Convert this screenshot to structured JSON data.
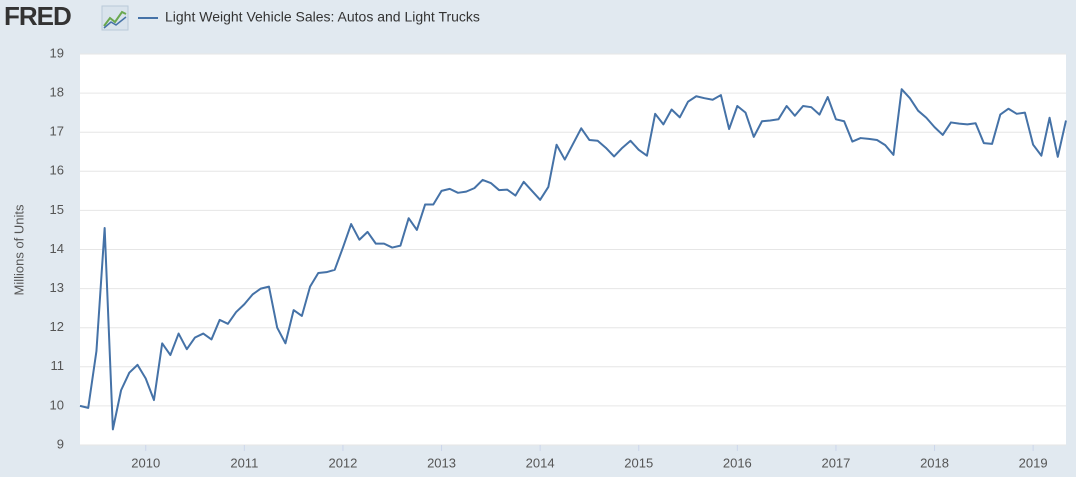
{
  "brand": "FRED",
  "chart_data": {
    "type": "line",
    "y_label": "Millions of Units",
    "xlim": [
      "2009-05",
      "2019-05"
    ],
    "xticks": [
      "2010",
      "2011",
      "2012",
      "2013",
      "2014",
      "2015",
      "2016",
      "2017",
      "2018",
      "2019"
    ],
    "ylim": [
      9,
      19
    ],
    "yticks": [
      9,
      10,
      11,
      12,
      13,
      14,
      15,
      16,
      17,
      18,
      19
    ],
    "grid": true,
    "x": [
      "2009-05",
      "2009-06",
      "2009-07",
      "2009-08",
      "2009-09",
      "2009-10",
      "2009-11",
      "2009-12",
      "2010-01",
      "2010-02",
      "2010-03",
      "2010-04",
      "2010-05",
      "2010-06",
      "2010-07",
      "2010-08",
      "2010-09",
      "2010-10",
      "2010-11",
      "2010-12",
      "2011-01",
      "2011-02",
      "2011-03",
      "2011-04",
      "2011-05",
      "2011-06",
      "2011-07",
      "2011-08",
      "2011-09",
      "2011-10",
      "2011-11",
      "2011-12",
      "2012-01",
      "2012-02",
      "2012-03",
      "2012-04",
      "2012-05",
      "2012-06",
      "2012-07",
      "2012-08",
      "2012-09",
      "2012-10",
      "2012-11",
      "2012-12",
      "2013-01",
      "2013-02",
      "2013-03",
      "2013-04",
      "2013-05",
      "2013-06",
      "2013-07",
      "2013-08",
      "2013-09",
      "2013-10",
      "2013-11",
      "2013-12",
      "2014-01",
      "2014-02",
      "2014-03",
      "2014-04",
      "2014-05",
      "2014-06",
      "2014-07",
      "2014-08",
      "2014-09",
      "2014-10",
      "2014-11",
      "2014-12",
      "2015-01",
      "2015-02",
      "2015-03",
      "2015-04",
      "2015-05",
      "2015-06",
      "2015-07",
      "2015-08",
      "2015-09",
      "2015-10",
      "2015-11",
      "2015-12",
      "2016-01",
      "2016-02",
      "2016-03",
      "2016-04",
      "2016-05",
      "2016-06",
      "2016-07",
      "2016-08",
      "2016-09",
      "2016-10",
      "2016-11",
      "2016-12",
      "2017-01",
      "2017-02",
      "2017-03",
      "2017-04",
      "2017-05",
      "2017-06",
      "2017-07",
      "2017-08",
      "2017-09",
      "2017-10",
      "2017-11",
      "2017-12",
      "2018-01",
      "2018-02",
      "2018-03",
      "2018-04",
      "2018-05",
      "2018-06",
      "2018-07",
      "2018-08",
      "2018-09",
      "2018-10",
      "2018-11",
      "2018-12",
      "2019-01",
      "2019-02",
      "2019-03",
      "2019-04",
      "2019-05"
    ],
    "series": [
      {
        "name": "Light Weight Vehicle Sales: Autos and Light Trucks",
        "color": "#4572a7",
        "values": [
          10.0,
          9.95,
          11.4,
          14.55,
          9.4,
          10.4,
          10.85,
          11.05,
          10.7,
          10.15,
          11.6,
          11.3,
          11.85,
          11.45,
          11.75,
          11.85,
          11.7,
          12.2,
          12.1,
          12.4,
          12.6,
          12.85,
          13.0,
          13.05,
          12.0,
          11.6,
          12.45,
          12.3,
          13.05,
          13.4,
          13.42,
          13.48,
          14.05,
          14.65,
          14.25,
          14.45,
          14.15,
          14.15,
          14.05,
          14.1,
          14.8,
          14.5,
          15.15,
          15.15,
          15.5,
          15.55,
          15.45,
          15.48,
          15.57,
          15.78,
          15.7,
          15.52,
          15.53,
          15.38,
          15.73,
          15.5,
          15.27,
          15.6,
          16.68,
          16.3,
          16.7,
          17.1,
          16.8,
          16.78,
          16.6,
          16.38,
          16.6,
          16.78,
          16.55,
          16.4,
          17.47,
          17.2,
          17.58,
          17.38,
          17.78,
          17.92,
          17.87,
          17.83,
          17.95,
          17.08,
          17.67,
          17.5,
          16.88,
          17.28,
          17.3,
          17.33,
          17.67,
          17.42,
          17.67,
          17.64,
          17.45,
          17.9,
          17.33,
          17.28,
          16.76,
          16.85,
          16.83,
          16.8,
          16.67,
          16.42,
          18.1,
          17.87,
          17.55,
          17.37,
          17.13,
          16.93,
          17.25,
          17.22,
          17.2,
          17.23,
          16.72,
          16.7,
          17.45,
          17.6,
          17.47,
          17.5,
          16.68,
          16.4,
          17.37,
          16.37,
          17.3
        ]
      }
    ]
  }
}
